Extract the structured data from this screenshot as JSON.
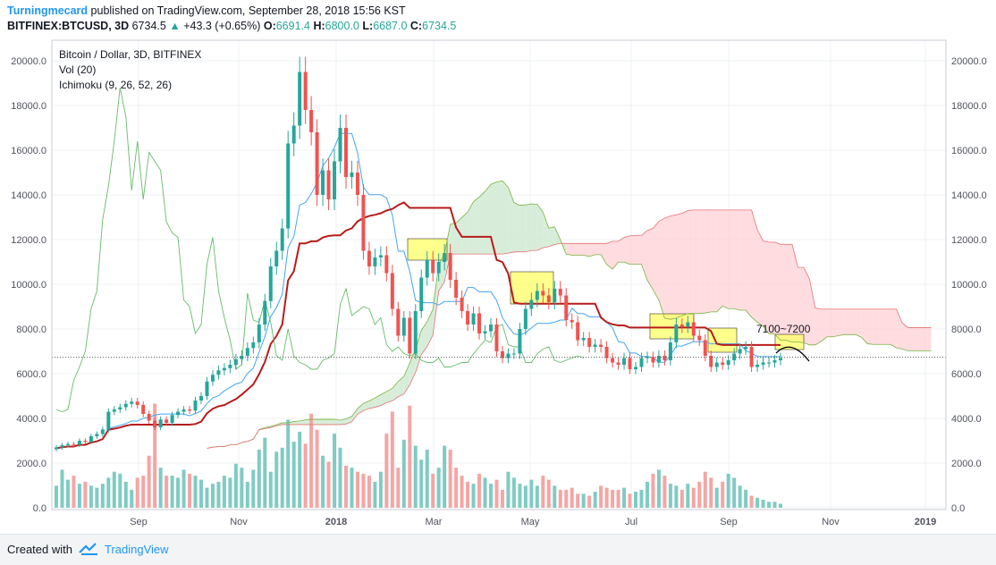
{
  "header": {
    "author": "Turningmecard",
    "published": "published on TradingView.com, September 28, 2018 15:56 KST",
    "symbol": "BITFINEX:BTCUSD, 3D",
    "last": "6734.5",
    "change": "+43.3 (+0.65%)",
    "o_label": "O:",
    "o": "6691.4",
    "h_label": "H:",
    "h": "6800.0",
    "l_label": "L:",
    "l": "6687.0",
    "c_label": "C:",
    "c": "6734.5"
  },
  "legend": {
    "title": "Bitcoin / Dollar, 3D, BITFINEX",
    "vol": "Vol (20)",
    "ichimoku": "Ichimoku (9, 26, 52, 26)"
  },
  "annotation": "7100~7200",
  "footer": {
    "created": "Created with",
    "brand": "TradingView"
  },
  "colors": {
    "up": "#26a69a",
    "down": "#ef5350",
    "vol_up": "#80cbc4",
    "vol_down": "#f4a6a4",
    "tenkan": "#42a5f5",
    "kijun": "#b71c1c",
    "lagging": "#66bb6a",
    "cloud_green": "#c8e6c9",
    "cloud_red": "#ffcdd2",
    "highlight": "#ffff66"
  },
  "chart_data": {
    "type": "candlestick",
    "y_axis_ticks": [
      "20000.0",
      "18000.0",
      "16000.0",
      "14000.0",
      "12000.0",
      "10000.0",
      "8000.0",
      "6000.0",
      "4000.0",
      "2000.0",
      "0.0"
    ],
    "x_axis_ticks": [
      "Sep",
      "Nov",
      "2018",
      "Mar",
      "May",
      "Jul",
      "Sep",
      "Nov",
      "2019"
    ],
    "ylim": [
      0,
      21000
    ],
    "last_price": 6734.5,
    "closes": [
      2700,
      2800,
      2850,
      2820,
      3000,
      2950,
      3200,
      3300,
      3500,
      4300,
      4400,
      4500,
      4650,
      4750,
      4600,
      4200,
      3900,
      3600,
      3950,
      3800,
      4150,
      4300,
      4400,
      4350,
      4800,
      5000,
      5650,
      5950,
      6150,
      6250,
      6400,
      6650,
      6800,
      7150,
      7400,
      8200,
      9250,
      10800,
      11500,
      12500,
      16300,
      17100,
      19500,
      17800,
      16800,
      14000,
      15100,
      13800,
      15500,
      17000,
      14800,
      15000,
      14000,
      11500,
      10800,
      11200,
      11300,
      10500,
      8900,
      7700,
      8500,
      6900,
      8800,
      10300,
      11100,
      10500,
      11000,
      11400,
      10200,
      9400,
      8800,
      8200,
      8700,
      7800,
      7900,
      8200,
      7000,
      6700,
      6900,
      6900,
      8000,
      8900,
      9300,
      9700,
      9500,
      9200,
      9800,
      9500,
      8400,
      8300,
      7500,
      7600,
      7200,
      7300,
      7200,
      6700,
      6500,
      6400,
      6700,
      6200,
      6300,
      6700,
      6750,
      6500,
      6800,
      6600,
      7400,
      8200,
      8100,
      8300,
      7700,
      7500,
      6800,
      6300,
      6500,
      6400,
      6600,
      6900,
      7100,
      7200,
      6300,
      6400,
      6500,
      6500,
      6600,
      6700
    ],
    "volumes": [
      1100,
      1900,
      1400,
      1600,
      1200,
      1300,
      1100,
      1000,
      1200,
      1500,
      1800,
      1700,
      1300,
      900,
      1500,
      1600,
      2600,
      5200,
      2000,
      1600,
      1600,
      1500,
      1900,
      1700,
      1600,
      1400,
      1000,
      1200,
      1300,
      1600,
      1500,
      2200,
      2000,
      1300,
      1900,
      2900,
      3500,
      1800,
      2800,
      3000,
      4400,
      3300,
      3800,
      3200,
      4700,
      3900,
      2600,
      2300,
      3700,
      3000,
      2100,
      2000,
      1800,
      1700,
      1600,
      1300,
      1800,
      3700,
      4800,
      2000,
      3400,
      5100,
      3100,
      2400,
      2900,
      1700,
      2000,
      3100,
      2900,
      2000,
      1600,
      1300,
      1200,
      1700,
      1500,
      1200,
      1400,
      900,
      1800,
      1500,
      1200,
      1100,
      1400,
      1100,
      1600,
      1400,
      1100,
      900,
      900,
      1000,
      700,
      700,
      600,
      800,
      1100,
      1000,
      900,
      900,
      1000,
      700,
      800,
      900,
      1300,
      1700,
      1900,
      1600,
      1200,
      1100,
      900,
      1200,
      1000,
      1300,
      1800,
      1500,
      1000,
      1300,
      1700,
      1500,
      1100,
      900,
      600,
      500,
      400,
      300,
      300,
      200
    ],
    "lagging_span": [
      4400,
      4300,
      4400,
      5700,
      6300,
      7000,
      8900,
      9700,
      12900,
      14400,
      16400,
      18800,
      17500,
      14200,
      16400,
      13800,
      15900,
      15500,
      15100,
      12800,
      12300,
      12100,
      9300,
      9000,
      7800,
      8200,
      10900,
      12100,
      9700,
      8500,
      7500,
      6200,
      6400,
      9600,
      8400,
      8300,
      9300,
      8300,
      6800,
      6600,
      8000,
      6800,
      6500,
      6400,
      6200,
      6200,
      6600,
      6700,
      6900,
      9100,
      9800,
      8600,
      8800,
      9000,
      8900,
      8200,
      8500,
      7300,
      7000,
      7200,
      6900,
      6800,
      6900,
      6600,
      6500,
      6500,
      6700,
      6300,
      6300,
      6400,
      6500,
      6500,
      6900,
      7200,
      7500,
      7400,
      8100,
      8200,
      7300,
      7200,
      7200,
      6500,
      6500,
      6900,
      7100,
      7200,
      6600,
      6500,
      6600,
      6700,
      6800,
      6700
    ]
  }
}
